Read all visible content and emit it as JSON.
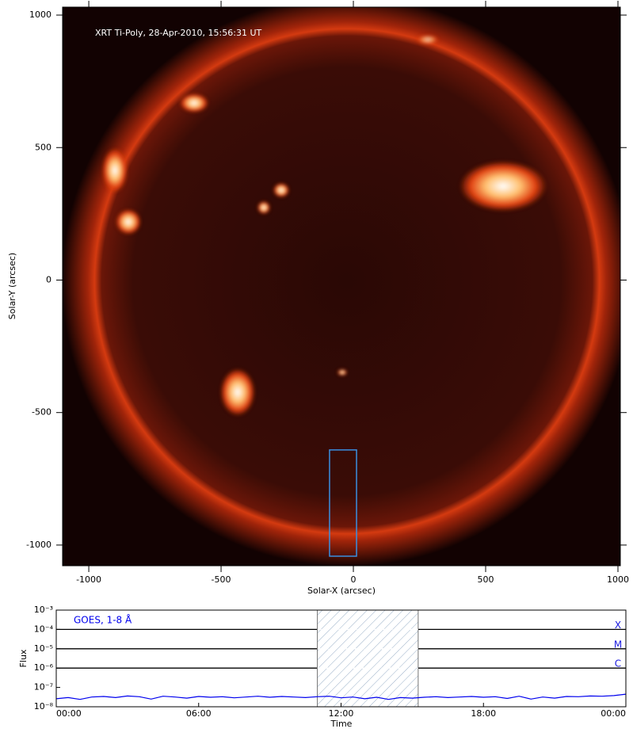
{
  "chart_data": [
    {
      "type": "image",
      "annotation": "XRT Ti-Poly, 28-Apr-2010, 15:56:31 UT",
      "x_label": "Solar-X (arcsec)",
      "y_label": "Solar-Y (arcsec)",
      "xlim": [
        -1099,
        1009
      ],
      "ylim": [
        -1078,
        1030
      ],
      "xticks": [
        -1000,
        -500,
        0,
        500,
        1000
      ],
      "yticks": [
        -1000,
        -500,
        0,
        500,
        1000
      ],
      "box": {
        "x": [
          -90,
          12
        ],
        "y": [
          -1042,
          -641
        ],
        "color": "#3a8fe0"
      }
    },
    {
      "type": "line",
      "x_label": "Time",
      "y_label": "Flux",
      "xlim": [
        0,
        24
      ],
      "xticks": [
        {
          "value": 0,
          "label": "00:00"
        },
        {
          "value": 6,
          "label": "06:00"
        },
        {
          "value": 12,
          "label": "12:00"
        },
        {
          "value": 18,
          "label": "18:00"
        },
        {
          "value": 24,
          "label": "00:00"
        }
      ],
      "ylim": [
        1e-08,
        0.001
      ],
      "yscale": "log",
      "yticks": [
        {
          "value": 1e-08,
          "label": "10⁻⁸"
        },
        {
          "value": 1e-07,
          "label": "10⁻⁷"
        },
        {
          "value": 1e-06,
          "label": "10⁻⁶"
        },
        {
          "value": 1e-05,
          "label": "10⁻⁵"
        },
        {
          "value": 0.0001,
          "label": "10⁻⁴"
        },
        {
          "value": 0.001,
          "label": "10⁻³"
        }
      ],
      "levels": [
        {
          "value": 0.0001,
          "label": "X"
        },
        {
          "value": 1e-05,
          "label": "M"
        },
        {
          "value": 1e-06,
          "label": "C"
        }
      ],
      "shade": [
        11.0,
        15.25
      ],
      "series": [
        {
          "name": "GOES, 1-8 Å",
          "color": "#0000ee",
          "x": [
            0,
            0.5,
            1,
            1.5,
            2,
            2.5,
            3,
            3.5,
            4,
            4.5,
            5,
            5.5,
            6,
            6.5,
            7,
            7.5,
            8,
            8.5,
            9,
            9.5,
            10,
            10.5,
            11,
            11.5,
            12,
            12.5,
            13,
            13.5,
            14,
            14.5,
            15,
            15.5,
            16,
            16.5,
            17,
            17.5,
            18,
            18.5,
            19,
            19.5,
            20,
            20.5,
            21,
            21.5,
            22,
            22.5,
            23,
            23.5,
            24
          ],
          "values": [
            2.6e-08,
            3e-08,
            2.4e-08,
            3.2e-08,
            3.4e-08,
            3e-08,
            3.6e-08,
            3.3e-08,
            2.5e-08,
            3.5e-08,
            3.2e-08,
            2.8e-08,
            3.4e-08,
            3.1e-08,
            3.3e-08,
            2.9e-08,
            3.2e-08,
            3.5e-08,
            3.1e-08,
            3.4e-08,
            3.2e-08,
            3e-08,
            3.3e-08,
            3.5e-08,
            2.9e-08,
            3.2e-08,
            2.6e-08,
            3.1e-08,
            2.4e-08,
            3e-08,
            2.8e-08,
            3.1e-08,
            3.3e-08,
            3e-08,
            3.2e-08,
            3.4e-08,
            3.1e-08,
            3.3e-08,
            2.7e-08,
            3.5e-08,
            2.5e-08,
            3.2e-08,
            2.8e-08,
            3.4e-08,
            3.3e-08,
            3.6e-08,
            3.5e-08,
            3.8e-08,
            4.5e-08
          ]
        }
      ]
    }
  ]
}
